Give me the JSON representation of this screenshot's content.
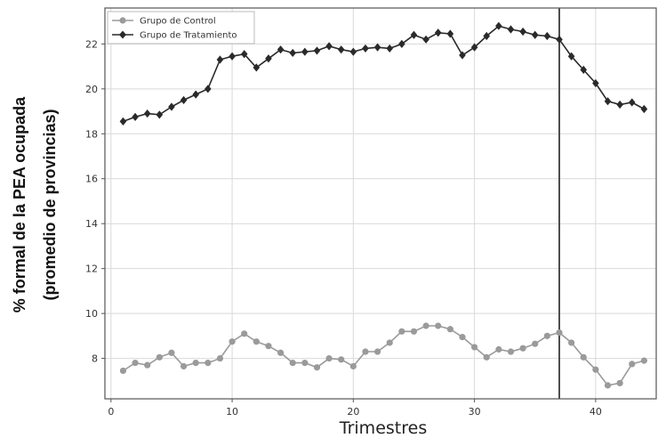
{
  "chart_data": {
    "type": "line",
    "xlabel": "Trimestres",
    "ylabel_lines": [
      "% formal de la PEA ocupada",
      "(promedio de provincias)"
    ],
    "xlim": [
      -0.5,
      45
    ],
    "ylim": [
      6.2,
      23.6
    ],
    "xticks": [
      0,
      10,
      20,
      30,
      40
    ],
    "yticks": [
      8,
      10,
      12,
      14,
      16,
      18,
      20,
      22
    ],
    "grid": true,
    "legend_position": "top-left",
    "vline_x": 37,
    "x": [
      1,
      2,
      3,
      4,
      5,
      6,
      7,
      8,
      9,
      10,
      11,
      12,
      13,
      14,
      15,
      16,
      17,
      18,
      19,
      20,
      21,
      22,
      23,
      24,
      25,
      26,
      27,
      28,
      29,
      30,
      31,
      32,
      33,
      34,
      35,
      36,
      37,
      38,
      39,
      40,
      41,
      42,
      43,
      44
    ],
    "series": [
      {
        "name": "Grupo de Control",
        "color": "#9a9a9a",
        "marker": "circle",
        "values": [
          7.45,
          7.8,
          7.7,
          8.05,
          8.25,
          7.65,
          7.8,
          7.8,
          8.0,
          8.75,
          9.1,
          8.75,
          8.55,
          8.25,
          7.8,
          7.8,
          7.6,
          8.0,
          7.95,
          7.65,
          8.3,
          8.3,
          8.7,
          9.2,
          9.2,
          9.45,
          9.45,
          9.3,
          8.95,
          8.5,
          8.05,
          8.4,
          8.3,
          8.45,
          8.65,
          9.0,
          9.15,
          8.7,
          8.05,
          7.5,
          6.8,
          6.9,
          7.75,
          7.9
        ]
      },
      {
        "name": "Grupo de Tratamiento",
        "color": "#2a2a2a",
        "marker": "diamond",
        "values": [
          18.55,
          18.75,
          18.9,
          18.85,
          19.2,
          19.5,
          19.75,
          20.0,
          21.3,
          21.45,
          21.55,
          20.95,
          21.35,
          21.75,
          21.6,
          21.65,
          21.7,
          21.9,
          21.75,
          21.65,
          21.8,
          21.85,
          21.8,
          22.0,
          22.4,
          22.2,
          22.5,
          22.45,
          21.5,
          21.85,
          22.35,
          22.8,
          22.65,
          22.55,
          22.4,
          22.35,
          22.2,
          21.45,
          20.85,
          20.25,
          19.45,
          19.3,
          19.4,
          19.1
        ]
      }
    ]
  },
  "colors": {
    "grid": "#d9d9d9",
    "axis": "#555555",
    "vline": "#3a3a3a"
  }
}
